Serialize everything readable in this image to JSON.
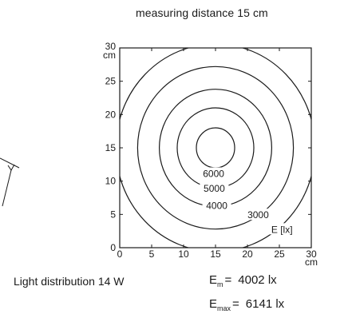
{
  "title": "measuring distance 15 cm",
  "caption": "Light distribution 14 W",
  "stats": {
    "mean": {
      "symbol": "E",
      "sub": "m",
      "eq": "=",
      "value": "4002 lx"
    },
    "max": {
      "symbol": "E",
      "sub": "max",
      "eq": "=",
      "value": "6141 lx"
    }
  },
  "chart_data": {
    "type": "contour",
    "xlabel": "cm",
    "ylabel": "cm",
    "xlim": [
      0,
      30
    ],
    "ylim": [
      0,
      30
    ],
    "x_ticks": [
      0,
      5,
      10,
      15,
      20,
      25,
      30
    ],
    "y_ticks": [
      0,
      5,
      10,
      15,
      20,
      25,
      30
    ],
    "center": [
      15,
      15
    ],
    "unit_label": "E [lx]",
    "levels": [
      {
        "value": 6000,
        "label": "6000",
        "radius": 3
      },
      {
        "value": 5000,
        "label": "5000",
        "radius": 6
      },
      {
        "value": 4000,
        "label": "4000",
        "radius": 8.8
      },
      {
        "value": 3000,
        "label": "3000",
        "radius": 12.2
      },
      {
        "value": null,
        "label": "",
        "radius": 15.6
      }
    ]
  }
}
